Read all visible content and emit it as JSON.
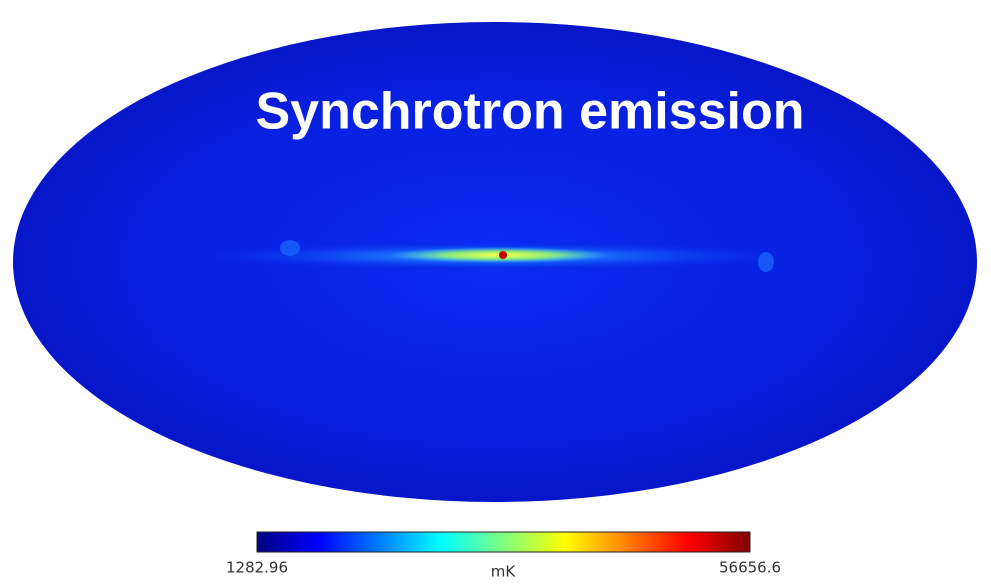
{
  "title": "Synchrotron emission",
  "colorbar": {
    "min": "1282.96",
    "max": "56656.6",
    "unit": "mK"
  }
}
